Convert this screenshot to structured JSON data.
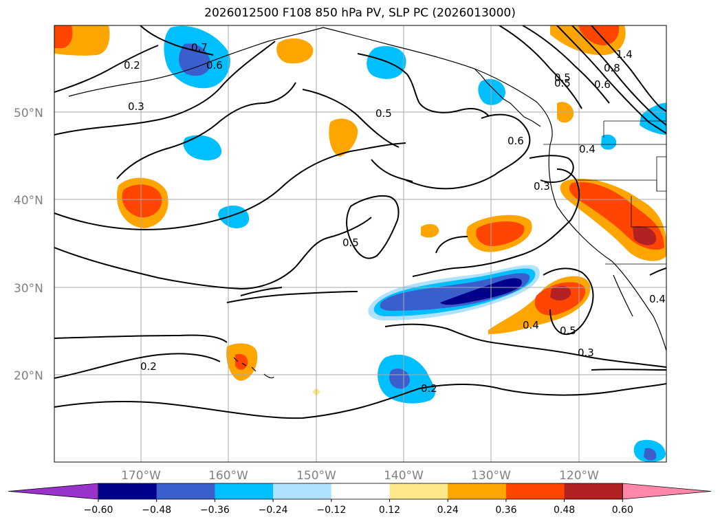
{
  "title": "2026012500 F108 850 hPa PV, SLP PC (2026013000)",
  "latitude_labels": [
    "50°N",
    "40°N",
    "30°N",
    "20°N"
  ],
  "longitude_labels": [
    "170°W",
    "160°W",
    "150°W",
    "140°W",
    "130°W",
    "120°W"
  ],
  "colorbar": {
    "ticks": [
      "−0.60",
      "−0.48",
      "−0.36",
      "−0.24",
      "−0.12",
      "0.12",
      "0.24",
      "0.36",
      "0.48",
      "0.60"
    ],
    "colors": [
      "#9933cc",
      "#00008b",
      "#3a5fcd",
      "#00bfff",
      "#b0e2ff",
      "#ffffff",
      "#ffe88a",
      "#ffa500",
      "#ff4500",
      "#b22222",
      "#ff88aa"
    ]
  },
  "contour_labels": [
    "0.2",
    "0.3",
    "0.7",
    "0.6",
    "0.5",
    "0.6",
    "0.4",
    "0.3",
    "0.5",
    "0.5",
    "0.4",
    "0.5",
    "0.3",
    "0.2",
    "0.2",
    "1.4",
    "0.8",
    "0.6",
    "0.5",
    "0.4"
  ]
}
